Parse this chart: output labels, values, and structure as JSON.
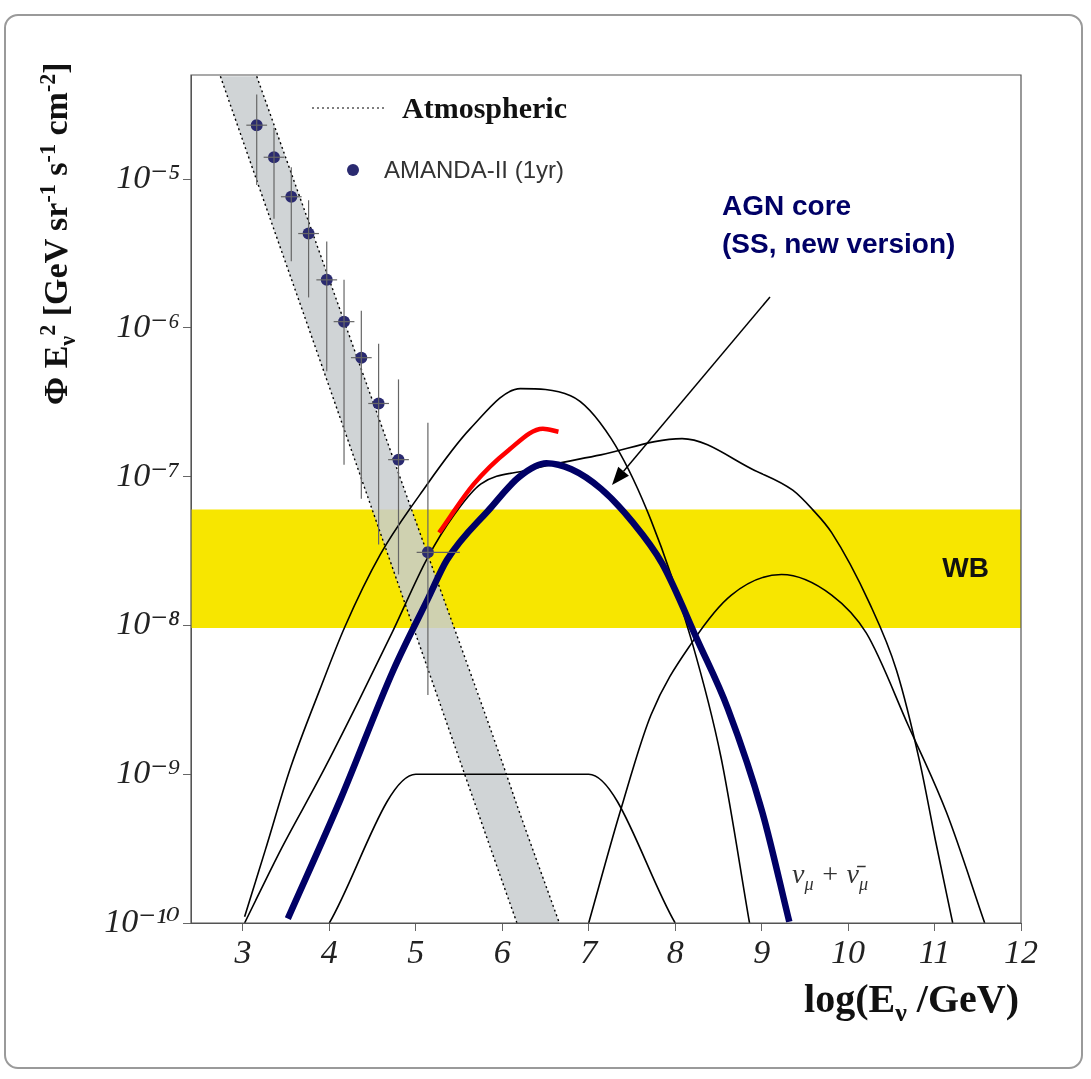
{
  "chart_data": {
    "type": "line",
    "xlabel": "log(E$_{ν}$ /GeV)",
    "ylabel": "Φ E$_{ν}$$^{2}$ [GeV sr$^{-1}$ s$^{-1}$ cm$^{-2}$]",
    "log": "y",
    "grid": false,
    "legend": "top",
    "xlim": [
      2.4,
      12
    ],
    "xticks": [
      3,
      4,
      5,
      6,
      7,
      8,
      9,
      10,
      11,
      12
    ],
    "ylim": [
      1e-10,
      5e-05
    ],
    "yticks": [
      {
        "value": 1e-10,
        "label": "10⁻¹⁰"
      },
      {
        "value": 1e-09,
        "label": "10⁻⁹"
      },
      {
        "value": 1e-08,
        "label": "10⁻⁸"
      },
      {
        "value": 1e-07,
        "label": "10⁻⁷"
      },
      {
        "value": 1e-06,
        "label": "10⁻⁶"
      },
      {
        "value": 1e-05,
        "label": "10⁻⁵"
      }
    ],
    "bands": [
      {
        "axis": "y",
        "from": 9.6e-09,
        "to": 6e-08,
        "label": "WB",
        "color": "#f7e600"
      }
    ],
    "annotations": [
      "AGN core\n(SS, new version)",
      "ν$_{μ}$ + ν̄$_{μ}$"
    ],
    "series": [
      {
        "name": "Atmospheric",
        "type": "line",
        "line_style": "dotted",
        "color": "#000000",
        "x": [
          2.74,
          3.16,
          4,
          5,
          6,
          6.17,
          6.66
        ],
        "values": [
          null,
          4.9e-05,
          2.1e-06,
          5e-08,
          1.2e-09,
          6.2e-10,
          1e-10
        ],
        "lower": [
          4.9e-05,
          9.8e-06,
          4e-07,
          8.7e-09,
          1.9e-10,
          1e-10,
          1e-10
        ],
        "upper": [
          4.9e-05,
          4.9e-05,
          2.1e-06,
          5e-08,
          1.2e-09,
          6.2e-10,
          1e-10
        ]
      },
      {
        "type": "line",
        "line_style": "dotted",
        "color": "#000000",
        "x": [
          2.74,
          3.16,
          4,
          5,
          6,
          6.17
        ],
        "values": [
          4.9e-05,
          9.8e-06,
          4e-07,
          8.7e-09,
          1.9e-10,
          1e-10
        ]
      },
      {
        "name": "AMANDA-II (1yr)",
        "type": "scatter",
        "color": "#2a2a70",
        "x": [
          3.16,
          3.36,
          3.56,
          3.76,
          3.97,
          4.17,
          4.37,
          4.57,
          4.8,
          5.14
        ],
        "values": [
          2.3e-05,
          1.4e-05,
          7.6e-06,
          4.3e-06,
          2.1e-06,
          1.1e-06,
          6.3e-07,
          3.1e-07,
          1.3e-07,
          3.1e-08
        ],
        "errors": [
          [
            9.1e-06,
            3.7e-05
          ],
          [
            5.4e-06,
            2.2e-05
          ],
          [
            2.8e-06,
            1.2e-05
          ],
          [
            1.6e-06,
            7.2e-06
          ],
          [
            5.1e-07,
            3.8e-06
          ],
          [
            1.2e-07,
            2.1e-06
          ],
          [
            7.1e-08,
            1.3e-06
          ],
          [
            3.5e-08,
            7.8e-07
          ],
          [
            2.2e-08,
            4.5e-07
          ],
          [
            3.4e-09,
            2.3e-07
          ]
        ],
        "xerrors": [
          0.12,
          0.12,
          0.12,
          0.12,
          0.12,
          0.12,
          0.12,
          0.12,
          0.12,
          [
            5.01,
            5.51
          ]
        ]
      },
      {
        "color": "#000000",
        "x": [
          3.02,
          3.26,
          3.55,
          3.89,
          4.18,
          4.59,
          5.05,
          5.63,
          6.21,
          6.79,
          7.26,
          7.72,
          8.19,
          8.53,
          8.86
        ],
        "values": [
          1.1e-10,
          3.1e-10,
          1.1e-09,
          3.7e-09,
          9.8e-09,
          3e-08,
          7.6e-08,
          2.1e-07,
          3.9e-07,
          3.5e-07,
          1.8e-07,
          5.1e-08,
          7.9e-09,
          1.3e-09,
          1e-10
        ]
      },
      {
        "color": "#000000",
        "x": [
          3.02,
          3.45,
          3.91,
          4.35,
          4.74,
          5.13,
          5.45,
          5.75,
          6.27,
          7.14,
          8.08,
          8.92,
          9.36,
          9.59,
          9.81,
          10.25,
          10.56,
          10.83,
          11.01,
          11.21
        ],
        "values": [
          1e-10,
          3.2e-10,
          1e-09,
          3.2e-09,
          9.3e-09,
          2.8e-08,
          5.6e-08,
          8.9e-08,
          1.1e-07,
          1.4e-07,
          1.8e-07,
          1.1e-07,
          8.1e-08,
          6e-08,
          4.2e-08,
          1.4e-08,
          5e-09,
          1.2e-09,
          3.6e-10,
          1e-10
        ]
      },
      {
        "color": "#000000",
        "x": [
          7.0,
          7.36,
          7.72,
          8.21,
          8.65,
          9.23,
          9.81,
          10.21,
          10.7,
          11.14,
          11.58
        ],
        "values": [
          1e-10,
          5.5e-10,
          2.5e-09,
          7.9e-09,
          1.6e-08,
          2.2e-08,
          1.6e-08,
          8.9e-09,
          2.1e-09,
          5.5e-10,
          1e-10
        ]
      },
      {
        "color": "#000000",
        "x": [
          4,
          5,
          7,
          8
        ],
        "values": [
          1e-10,
          1e-09,
          1e-09,
          1e-10
        ]
      },
      {
        "color": "#000066",
        "x": [
          3.52,
          4.13,
          4.74,
          5.15,
          5.36,
          5.87,
          6.2,
          6.51,
          6.8,
          7.14,
          7.5,
          7.85,
          8.26,
          8.61,
          9.01,
          9.32
        ],
        "values": [
          1.07e-10,
          6.8e-10,
          5e-09,
          1.55e-08,
          2.75e-08,
          6.2e-08,
          1e-07,
          1.23e-07,
          1.12e-07,
          8.3e-08,
          5e-08,
          2.6e-08,
          7.9e-09,
          2.75e-09,
          5.5e-10,
          1.02e-10
        ]
      },
      {
        "color": "#ff0000",
        "x": [
          5.27,
          5.67,
          6.07,
          6.47,
          6.65
        ],
        "values": [
          4.2e-08,
          8.9e-08,
          1.5e-07,
          2.1e-07,
          2e-07
        ]
      }
    ]
  }
}
